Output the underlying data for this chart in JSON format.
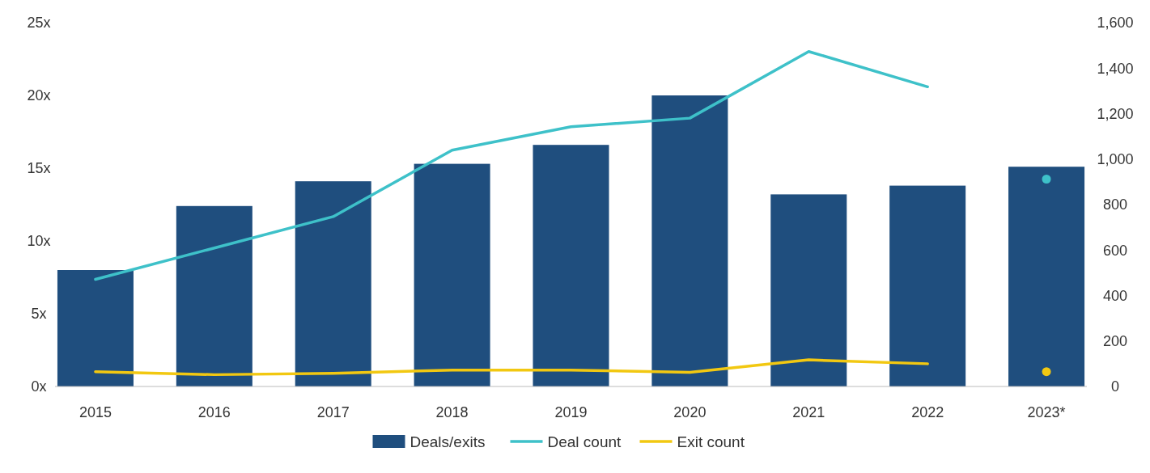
{
  "chart_data": {
    "type": "bar",
    "categories": [
      "2015",
      "2016",
      "2017",
      "2018",
      "2019",
      "2020",
      "2021",
      "2022",
      "2023*"
    ],
    "series": [
      {
        "name": "Deals/exits",
        "color": "#1f4e7e",
        "values": [
          8.0,
          12.4,
          14.1,
          15.3,
          16.6,
          20.0,
          13.2,
          13.8,
          15.1
        ]
      },
      {
        "name": "Deal count",
        "type": "line",
        "axis": "y2",
        "color": "#3ec1c9",
        "marker": "none",
        "values": [
          471,
          609,
          747,
          1039,
          1142,
          1180,
          1473,
          1318,
          null
        ]
      },
      {
        "name": "Exit count",
        "type": "line",
        "axis": "y2",
        "color": "#f2c811",
        "marker": "none",
        "values": [
          65,
          52,
          58,
          72,
          72,
          62,
          117,
          100,
          null
        ]
      },
      {
        "type": "scatter",
        "axis": "y2",
        "color": "#3ec1c9",
        "marker": "circle",
        "x": [
          "2023*"
        ],
        "values": [
          912
        ]
      },
      {
        "type": "scatter",
        "axis": "y2",
        "color": "#f2c811",
        "marker": "circle",
        "x": [
          "2023*"
        ],
        "values": [
          65
        ]
      }
    ],
    "ylim": [
      0,
      25
    ],
    "yticks": [
      {
        "value": 0,
        "label": "0x"
      },
      {
        "value": 5,
        "label": "5x"
      },
      {
        "value": 10,
        "label": "10x"
      },
      {
        "value": 15,
        "label": "15x"
      },
      {
        "value": 20,
        "label": "20x"
      },
      {
        "value": 25,
        "label": "25x"
      }
    ],
    "y2lim": [
      0,
      1600
    ],
    "y2ticks": [
      0,
      200,
      400,
      600,
      800,
      {
        "value": 1000,
        "label": "1,000"
      },
      {
        "value": 1200,
        "label": "1,200"
      },
      {
        "value": 1400,
        "label": "1,400"
      },
      {
        "value": 1600,
        "label": "1,600"
      }
    ],
    "legend": "bottom",
    "grid": false
  }
}
